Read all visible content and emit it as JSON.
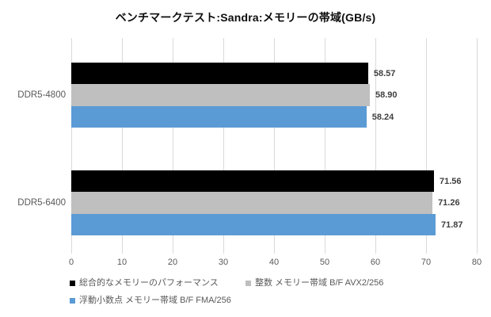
{
  "title": "ベンチマークテスト:Sandra:メモリーの帯域(GB/s)",
  "chart_data": {
    "type": "bar",
    "orientation": "horizontal",
    "title": "ベンチマークテスト:Sandra:メモリーの帯域(GB/s)",
    "categories": [
      "DDR5-4800",
      "DDR5-6400"
    ],
    "series": [
      {
        "name": "総合的なメモリーのパフォーマンス",
        "color": "#000000",
        "values": [
          58.57,
          71.56
        ]
      },
      {
        "name": "整数 メモリー帯域 B/F AVX2/256",
        "color": "#BFBFBF",
        "values": [
          58.9,
          71.26
        ]
      },
      {
        "name": "浮動小数点 メモリー帯域 B/F FMA/256",
        "color": "#5B9BD5",
        "values": [
          58.24,
          71.87
        ]
      }
    ],
    "xlim": [
      0,
      80
    ],
    "x_ticks": [
      0,
      10,
      20,
      30,
      40,
      50,
      60,
      70,
      80
    ],
    "grid": true,
    "legend_position": "bottom-left",
    "value_label_decimals": 2
  },
  "colors": {
    "background": "#FFFFFF",
    "grid": "#D9D9D9",
    "tick_label": "#595959",
    "category_label": "#595959",
    "value_label": "#404040",
    "legend_text": "#595959"
  }
}
